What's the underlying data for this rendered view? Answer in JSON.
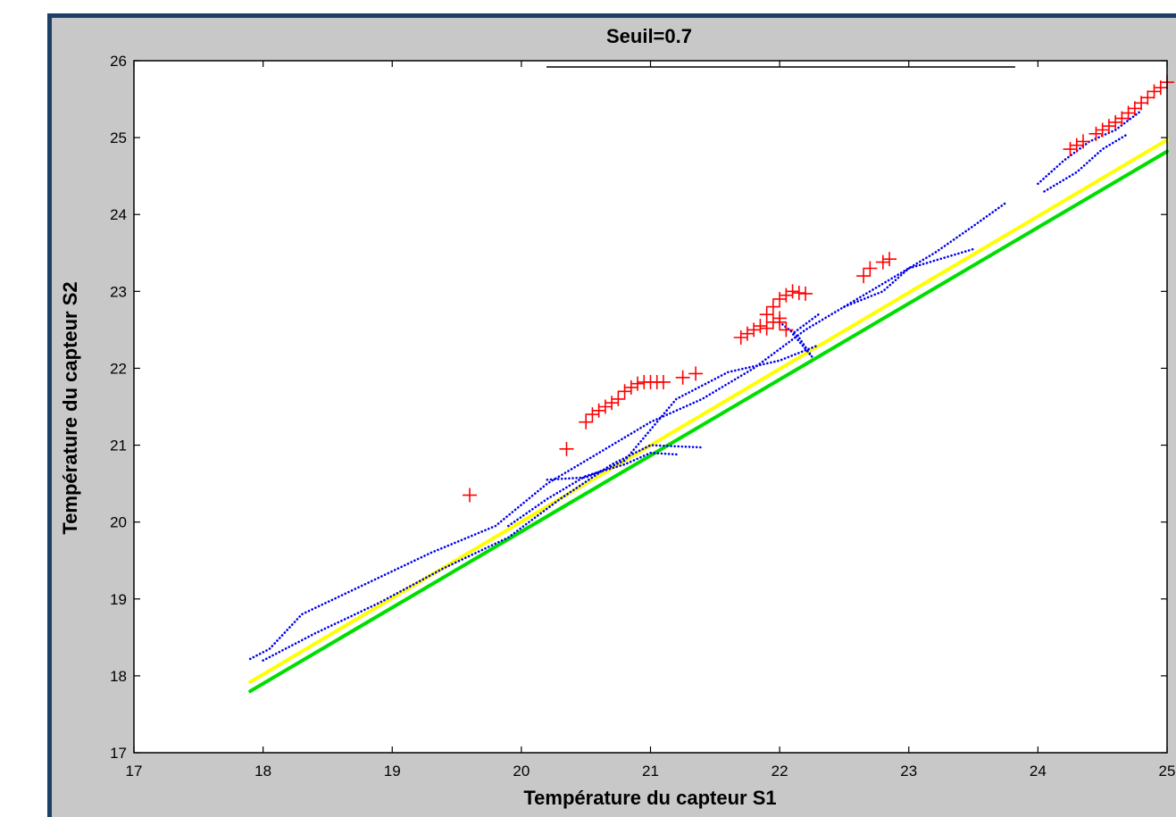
{
  "chart_data": {
    "type": "scatter",
    "title": "Seuil=0.7",
    "xlabel": "Température du capteur S1",
    "ylabel": "Température du capteur S2",
    "xlim": [
      17,
      25
    ],
    "ylim": [
      17,
      26
    ],
    "xticks": [
      "17",
      "18",
      "19",
      "20",
      "21",
      "22",
      "23",
      "24",
      "25"
    ],
    "yticks": [
      "17",
      "18",
      "19",
      "20",
      "21",
      "22",
      "23",
      "24",
      "25",
      "26"
    ],
    "grid": false,
    "colors": {
      "frame_border": "#1e3f66",
      "frame_background": "#c8c8c8",
      "blue": "#0000ee",
      "red": "#ff0000",
      "yellow": "#ffff00",
      "green": "#00dd00"
    },
    "series": [
      {
        "style": "line",
        "color": "#ffff00",
        "x": [
          17.9,
          25.0
        ],
        "y": [
          17.92,
          24.97
        ]
      },
      {
        "style": "line",
        "color": "#00dd00",
        "x": [
          17.9,
          25.0
        ],
        "y": [
          17.8,
          24.82
        ]
      },
      {
        "style": "dotted-line",
        "color": "#0000ee",
        "x": [
          17.9,
          18.05,
          18.3,
          18.8,
          19.3,
          19.8,
          20.2,
          20.6,
          21.0,
          21.4,
          21.8,
          22.2,
          22.6,
          22.9,
          23.2,
          23.5,
          23.75
        ],
        "y": [
          18.22,
          18.35,
          18.8,
          19.2,
          19.6,
          19.95,
          20.5,
          20.9,
          21.3,
          21.6,
          22.0,
          22.5,
          22.9,
          23.2,
          23.5,
          23.85,
          24.15
        ]
      },
      {
        "style": "dotted-line",
        "color": "#0000ee",
        "x": [
          18.0,
          18.4,
          18.9,
          19.4,
          19.9,
          20.3,
          20.7,
          21.0,
          21.4
        ],
        "y": [
          18.2,
          18.55,
          18.95,
          19.4,
          19.8,
          20.3,
          20.75,
          21.0,
          20.97
        ]
      },
      {
        "style": "dotted-line",
        "color": "#0000ee",
        "x": [
          19.9,
          20.2,
          20.5,
          20.8,
          21.0,
          21.2
        ],
        "y": [
          19.95,
          20.3,
          20.6,
          20.75,
          20.9,
          20.88
        ]
      },
      {
        "style": "dotted-line",
        "color": "#0000ee",
        "x": [
          20.2,
          20.5,
          20.8,
          21.2,
          21.6,
          22.0,
          22.3
        ],
        "y": [
          20.55,
          20.58,
          20.8,
          21.6,
          21.95,
          22.1,
          22.3
        ]
      },
      {
        "style": "dotted-line",
        "color": "#0000ee",
        "x": [
          22.0,
          22.15,
          22.25,
          22.1,
          22.3
        ],
        "y": [
          22.6,
          22.4,
          22.15,
          22.45,
          22.7
        ]
      },
      {
        "style": "dotted-line",
        "color": "#0000ee",
        "x": [
          22.5,
          22.8,
          23.0,
          23.3,
          23.5
        ],
        "y": [
          22.8,
          23.0,
          23.3,
          23.45,
          23.55
        ]
      },
      {
        "style": "dotted-line",
        "color": "#0000ee",
        "x": [
          24.0,
          24.2,
          24.4,
          24.6,
          24.8
        ],
        "y": [
          24.4,
          24.7,
          24.95,
          25.1,
          25.35
        ]
      },
      {
        "style": "dotted-line",
        "color": "#0000ee",
        "x": [
          24.05,
          24.3,
          24.5,
          24.7
        ],
        "y": [
          24.3,
          24.55,
          24.85,
          25.05
        ]
      },
      {
        "style": "markers",
        "marker": "+",
        "color": "#ff0000",
        "x": [
          19.6,
          20.35,
          20.5,
          20.55,
          20.6,
          20.65,
          20.7,
          20.75,
          20.8,
          20.85,
          20.9,
          20.95,
          21.0,
          21.05,
          21.1,
          21.25,
          21.35,
          21.7,
          21.75,
          21.8,
          21.85,
          21.9,
          21.95,
          22.0,
          21.9,
          21.95,
          22.0,
          22.05,
          22.1,
          22.15,
          22.2,
          22.0,
          22.05,
          22.65,
          22.7,
          22.8,
          22.85,
          24.25,
          24.3,
          24.35,
          24.45,
          24.5,
          24.55,
          24.6,
          24.65,
          24.7,
          24.75,
          24.8,
          24.85,
          24.9,
          24.95,
          25.0
        ],
        "y": [
          20.35,
          20.95,
          21.3,
          21.4,
          21.45,
          21.5,
          21.55,
          21.6,
          21.7,
          21.75,
          21.8,
          21.82,
          21.82,
          21.82,
          21.82,
          21.88,
          21.93,
          22.4,
          22.45,
          22.5,
          22.55,
          22.52,
          22.6,
          22.65,
          22.7,
          22.8,
          22.9,
          22.95,
          23.0,
          22.98,
          22.97,
          22.6,
          22.5,
          23.2,
          23.3,
          23.38,
          23.42,
          24.85,
          24.9,
          24.95,
          25.05,
          25.1,
          25.15,
          25.2,
          25.25,
          25.32,
          25.38,
          25.45,
          25.52,
          25.6,
          25.65,
          25.72
        ]
      }
    ]
  }
}
